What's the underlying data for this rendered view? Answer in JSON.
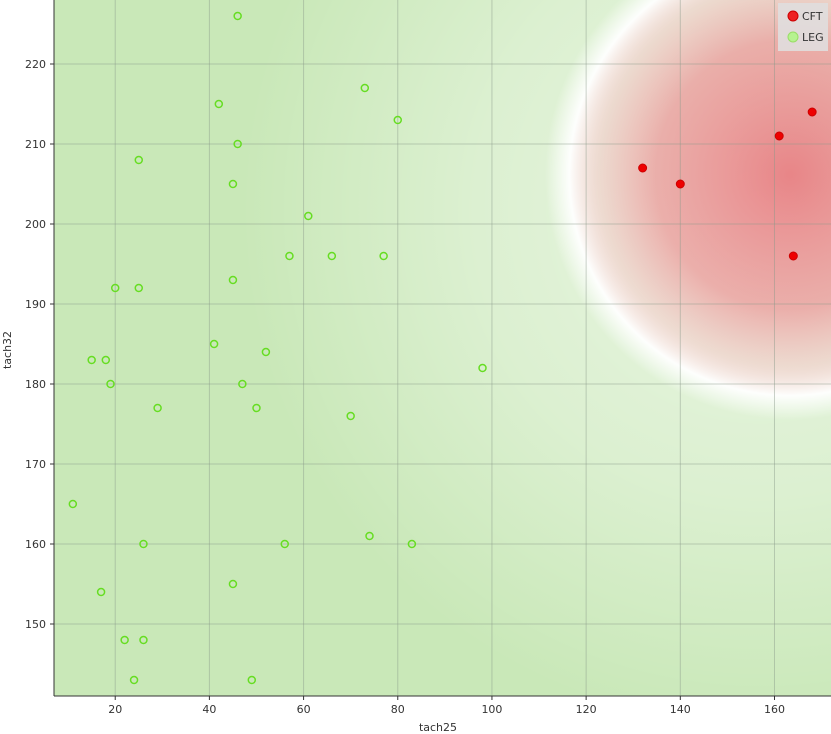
{
  "chart_data": {
    "type": "scatter",
    "title": "",
    "xlabel": "tach25",
    "ylabel": "tach32",
    "xlim": [
      7,
      172
    ],
    "ylim": [
      141,
      228
    ],
    "x_ticks": [
      20,
      40,
      60,
      80,
      100,
      120,
      140,
      160
    ],
    "y_ticks": [
      150,
      160,
      170,
      180,
      190,
      200,
      210,
      220
    ],
    "x_tick_labels": [
      "20",
      "40",
      "60",
      "80",
      "100",
      "120",
      "140",
      "160"
    ],
    "y_tick_labels": [
      "150",
      "160",
      "170",
      "180",
      "190",
      "200",
      "210",
      "220"
    ],
    "grid": true,
    "legend_position": "top-right",
    "background": "decision-region shading (green LEG region, red CFT region)",
    "series": [
      {
        "name": "CFT",
        "color": "#ee0000",
        "marker": "filled-circle",
        "points": [
          [
            132,
            207
          ],
          [
            140,
            205
          ],
          [
            161,
            211
          ],
          [
            168,
            214
          ],
          [
            164,
            196
          ]
        ]
      },
      {
        "name": "LEG",
        "color": "#66dd22",
        "marker": "hollow-circle",
        "points": [
          [
            46,
            226
          ],
          [
            73,
            217
          ],
          [
            42,
            215
          ],
          [
            80,
            213
          ],
          [
            46,
            210
          ],
          [
            25,
            208
          ],
          [
            45,
            205
          ],
          [
            61,
            201
          ],
          [
            57,
            196
          ],
          [
            66,
            196
          ],
          [
            77,
            196
          ],
          [
            45,
            193
          ],
          [
            20,
            192
          ],
          [
            25,
            192
          ],
          [
            41,
            185
          ],
          [
            52,
            184
          ],
          [
            15,
            183
          ],
          [
            18,
            183
          ],
          [
            98,
            182
          ],
          [
            19,
            180
          ],
          [
            47,
            180
          ],
          [
            29,
            177
          ],
          [
            50,
            177
          ],
          [
            70,
            176
          ],
          [
            11,
            165
          ],
          [
            74,
            161
          ],
          [
            26,
            160
          ],
          [
            56,
            160
          ],
          [
            83,
            160
          ],
          [
            17,
            154
          ],
          [
            45,
            155
          ],
          [
            22,
            148
          ],
          [
            26,
            148
          ],
          [
            24,
            143
          ],
          [
            49,
            143
          ]
        ]
      }
    ]
  }
}
